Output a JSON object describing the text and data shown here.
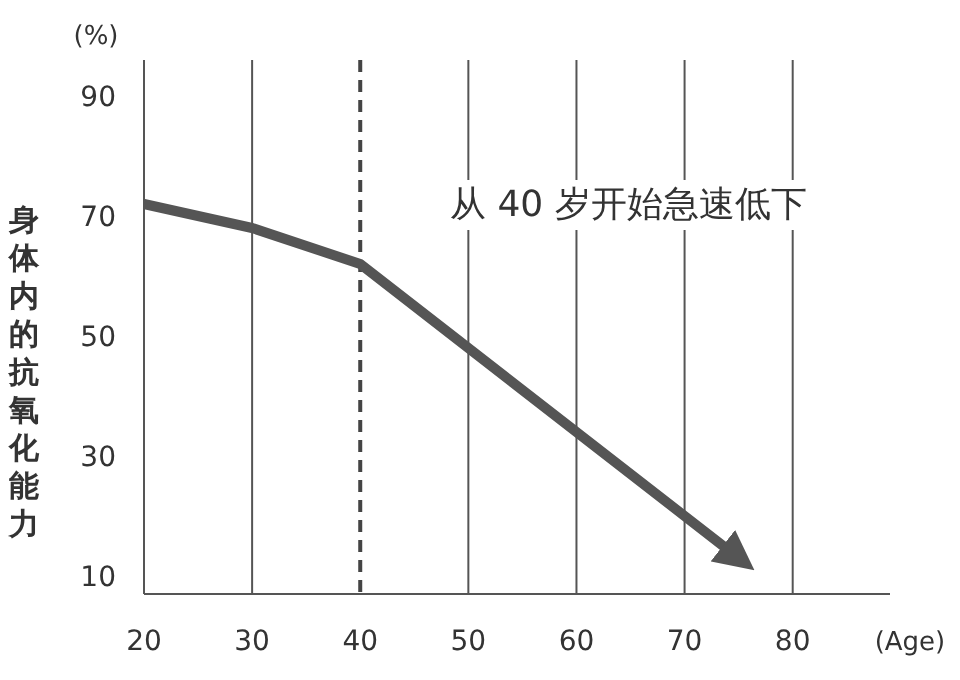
{
  "chart_data": {
    "type": "line",
    "xlabel": "(Age)",
    "ylabel": "身体内的抗氧化能力",
    "y2label": null,
    "annotations": [
      "从 40 岁开始急速低下",
      "(%)"
    ],
    "x": [
      20,
      30,
      40,
      75
    ],
    "series": [
      {
        "color": "#555555",
        "values": [
          72,
          68,
          62,
          13
        ]
      }
    ],
    "xlim": [
      20,
      89
    ],
    "ylim": [
      7,
      96
    ],
    "xticks": [
      20,
      30,
      40,
      50,
      60,
      70,
      80
    ],
    "yticks": [
      {
        "value": 10,
        "label": "10"
      },
      {
        "value": 30,
        "label": "30"
      },
      {
        "value": 50,
        "label": "50"
      },
      {
        "value": 70,
        "label": "70"
      },
      {
        "value": 90,
        "label": "90"
      }
    ],
    "grid": "x",
    "marker": "none",
    "line_style": "solid",
    "ref_lines": [
      {
        "axis": "x",
        "value": 40,
        "label": null,
        "color": "#444444",
        "line_style": "dashed"
      }
    ]
  }
}
